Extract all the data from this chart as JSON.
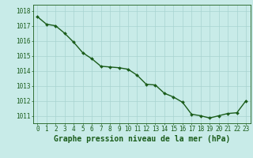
{
  "x": [
    0,
    1,
    2,
    3,
    4,
    5,
    6,
    7,
    8,
    9,
    10,
    11,
    12,
    13,
    14,
    15,
    16,
    17,
    18,
    19,
    20,
    21,
    22,
    23
  ],
  "y": [
    1017.6,
    1017.1,
    1017.0,
    1016.5,
    1015.9,
    1015.2,
    1014.8,
    1014.3,
    1014.25,
    1014.2,
    1014.1,
    1013.7,
    1013.1,
    1013.05,
    1012.5,
    1012.25,
    1011.9,
    1011.1,
    1011.0,
    1010.85,
    1011.0,
    1011.15,
    1011.2,
    1012.0
  ],
  "line_color": "#1a5c1a",
  "marker": "D",
  "marker_size": 2.0,
  "bg_color": "#c8ebe8",
  "grid_color": "#a8d4d0",
  "text_color": "#1a5c1a",
  "title": "Graphe pression niveau de la mer (hPa)",
  "ylim_min": 1010.5,
  "ylim_max": 1018.4,
  "yticks": [
    1011,
    1012,
    1013,
    1014,
    1015,
    1016,
    1017,
    1018
  ],
  "xticks": [
    0,
    1,
    2,
    3,
    4,
    5,
    6,
    7,
    8,
    9,
    10,
    11,
    12,
    13,
    14,
    15,
    16,
    17,
    18,
    19,
    20,
    21,
    22,
    23
  ],
  "tick_fontsize": 5.5,
  "title_fontsize": 7.0,
  "linewidth": 1.0
}
